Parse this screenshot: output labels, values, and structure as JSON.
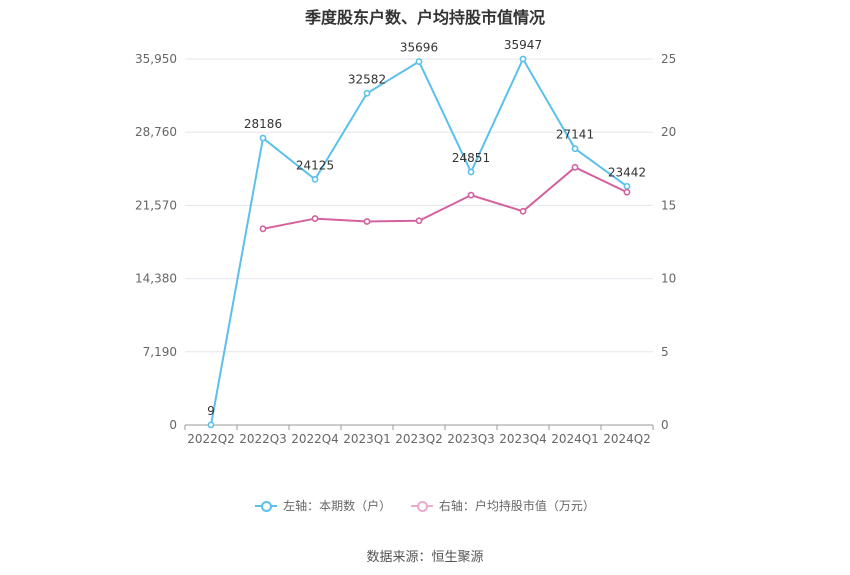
{
  "chart_data": {
    "type": "line",
    "title": "季度股东户数、户均持股市值情况",
    "categories": [
      "2022Q2",
      "2022Q3",
      "2022Q4",
      "2023Q1",
      "2023Q2",
      "2023Q3",
      "2023Q4",
      "2024Q1",
      "2024Q2"
    ],
    "left_axis": {
      "ticks": [
        "0",
        "7,190",
        "14,380",
        "21,570",
        "28,760",
        "35,950"
      ],
      "range": [
        0,
        35950
      ]
    },
    "right_axis": {
      "ticks": [
        "0",
        "5",
        "10",
        "15",
        "20",
        "25"
      ],
      "range": [
        0,
        25
      ]
    },
    "series": [
      {
        "name": "左轴：本期数（户）",
        "axis": "left",
        "color": "#5bc0eb",
        "values": [
          9,
          28186,
          24125,
          32582,
          35696,
          24851,
          35947,
          27141,
          23442
        ],
        "labels": [
          "9",
          "28186",
          "24125",
          "32582",
          "35696",
          "24851",
          "35947",
          "27141",
          "23442"
        ]
      },
      {
        "name": "右轴：户均持股市值（万元）",
        "axis": "right",
        "color": "#d4609e",
        "values": [
          null,
          13.4,
          14.1,
          13.9,
          13.95,
          15.7,
          14.6,
          17.6,
          15.9
        ]
      }
    ],
    "grid": true,
    "legend_position": "bottom"
  },
  "source": "数据来源：恒生聚源"
}
